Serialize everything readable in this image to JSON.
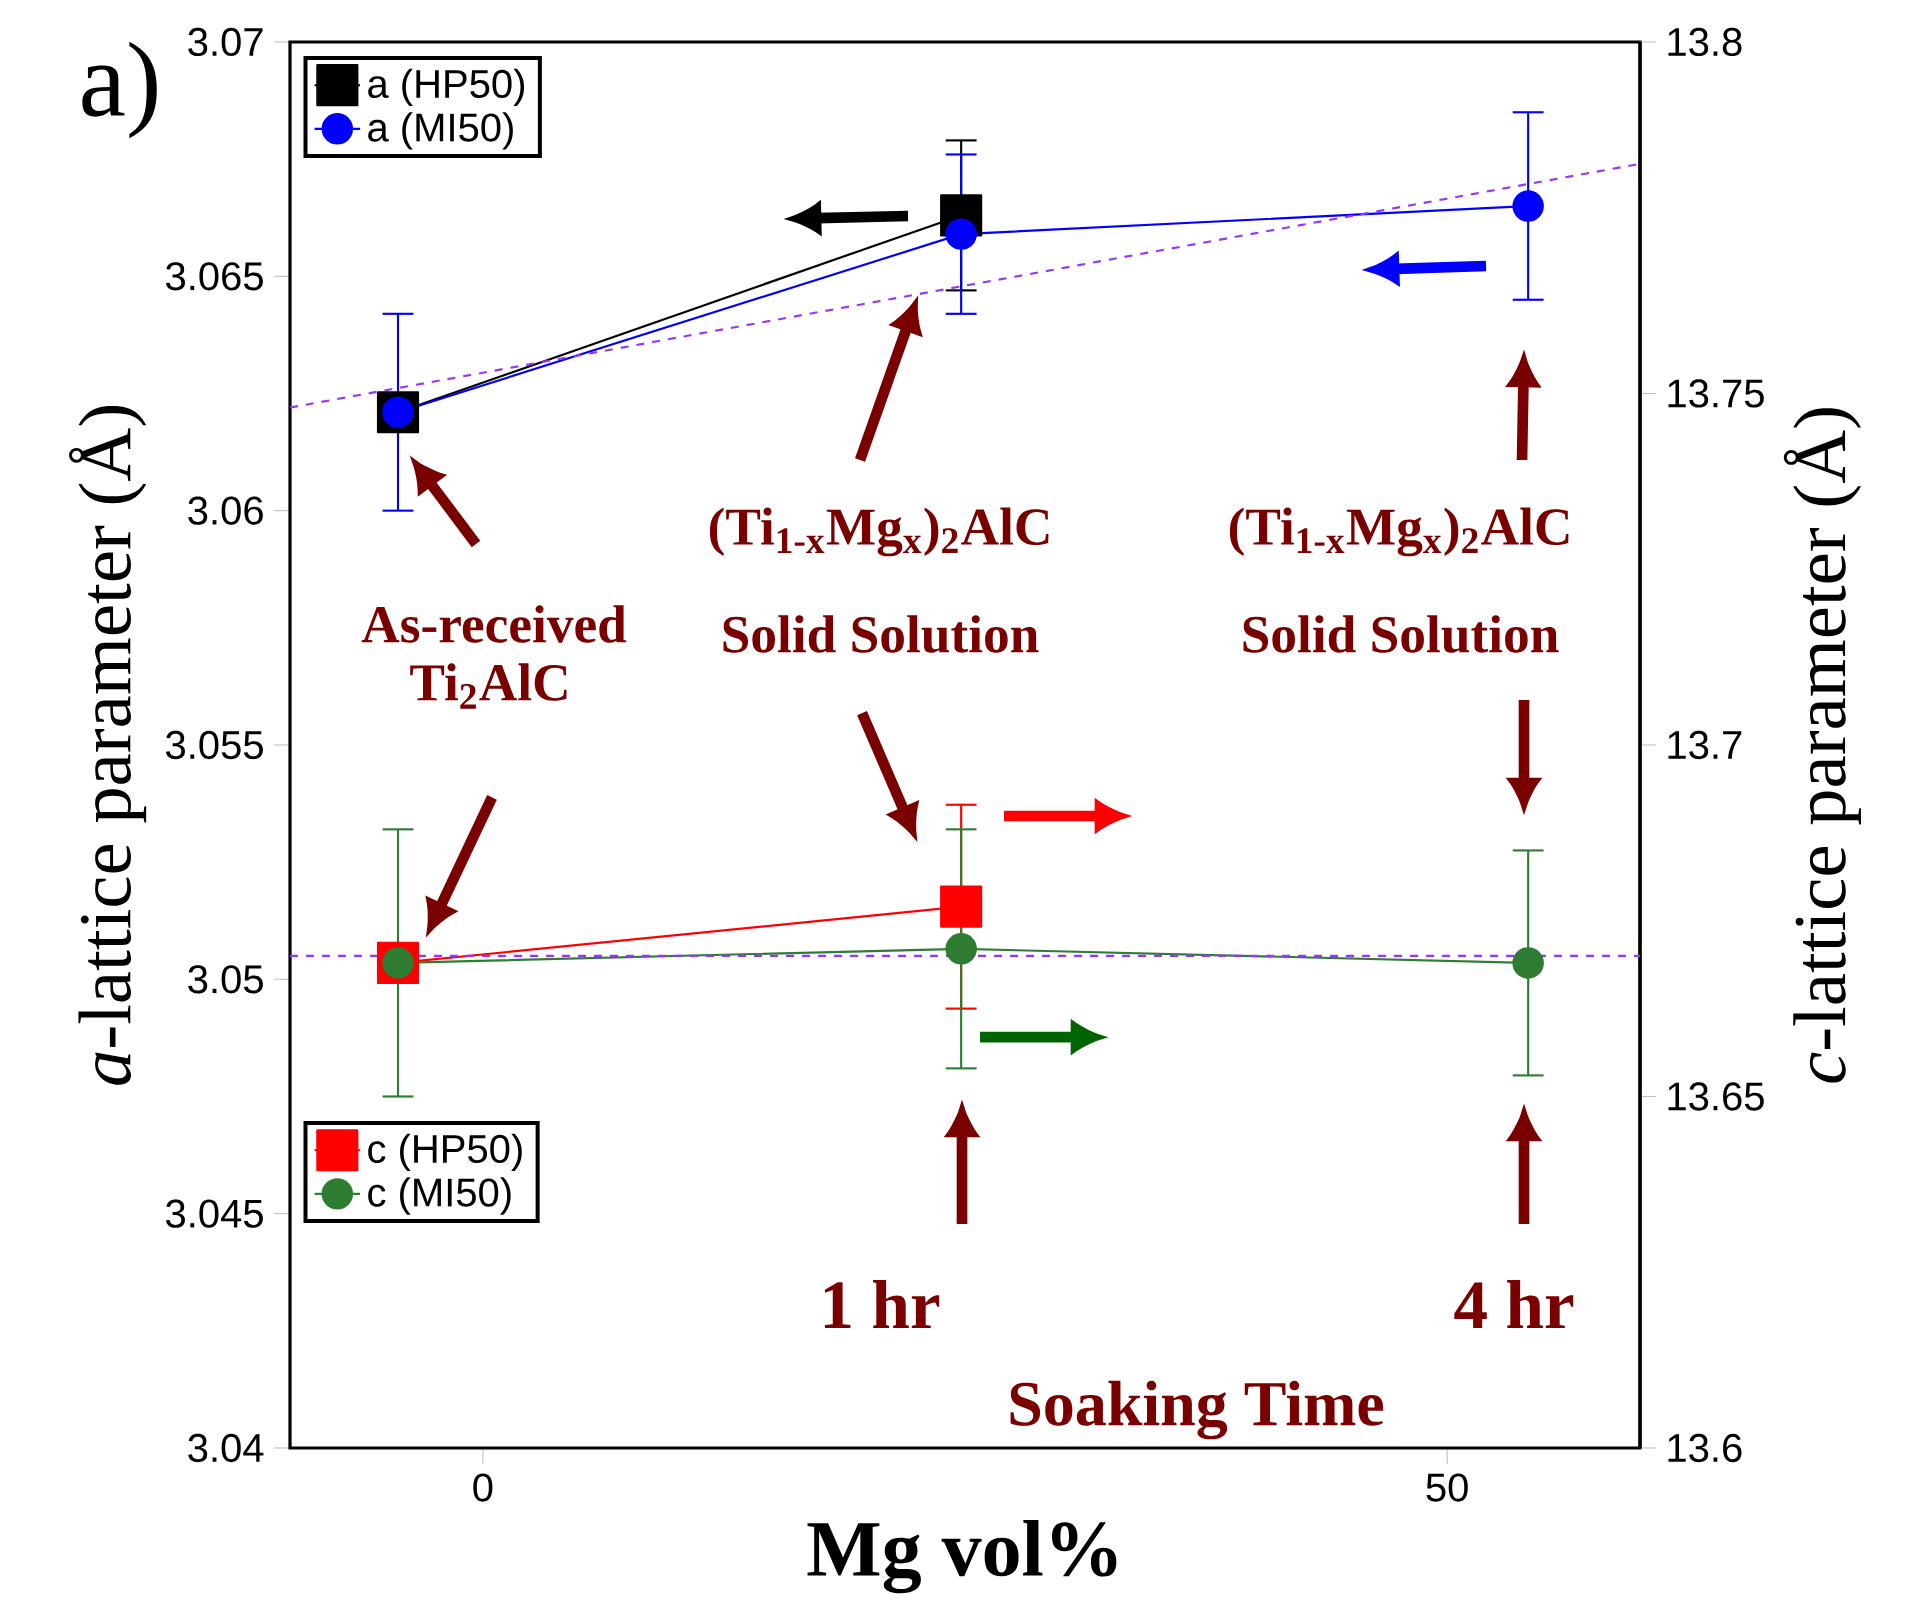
{
  "chart_data": {
    "type": "line",
    "xlabel": "Mg vol%",
    "ylabel": "*a*-lattice parameter (Å)",
    "y2label": "*c*-lattice parameter (Å)",
    "x": [
      -4.4,
      24.8,
      54.2
    ],
    "xlim": [
      -10,
      60
    ],
    "xticks": [
      0,
      50
    ],
    "ylim": [
      3.04,
      3.07
    ],
    "yticks": [
      3.04,
      3.045,
      3.05,
      3.055,
      3.06,
      3.065,
      3.07
    ],
    "y2lim": [
      13.6,
      13.8
    ],
    "y2ticks": [
      13.6,
      13.65,
      13.7,
      13.75,
      13.8
    ],
    "legend": "top left",
    "series": [
      {
        "name": "a (HP50)",
        "color": "#000000",
        "marker": "square",
        "values": [
          3.0621,
          3.0663,
          null
        ],
        "errors": [
          null,
          0.0016,
          null
        ]
      },
      {
        "name": "a (MI50)",
        "color": "#0000ff",
        "marker": "circle",
        "values": [
          3.0621,
          3.0659,
          3.0665
        ],
        "errors": [
          0.0021,
          0.0017,
          0.002
        ]
      },
      {
        "name": "c (HP50)",
        "color": "#ff0000",
        "marker": "square",
        "axis": "y2",
        "values": [
          13.669,
          13.677,
          null
        ],
        "errors": [
          null,
          0.0145,
          null
        ]
      },
      {
        "name": "c (MI50)",
        "color": "#2e7d32",
        "marker": "circle",
        "axis": "y2",
        "values": [
          13.669,
          13.671,
          13.669
        ],
        "errors": [
          0.019,
          0.017,
          0.016
        ]
      },
      {
        "type": "line",
        "color": "#9933ff",
        "line_style": "dashed",
        "marker": "none",
        "x": [
          -10,
          60
        ],
        "values": [
          3.0622,
          3.0674
        ]
      }
    ],
    "ref_lines": [
      {
        "axis": "y2",
        "value": 13.67,
        "color": "#9933ff",
        "line_style": "dashed"
      }
    ],
    "annotations": [
      "a)",
      "As-received",
      "Ti$_{2}$AlC",
      "(Ti$_{1-x}$Mg$_{x}$)$_{2}$AlC",
      "Solid Solution",
      "(Ti$_{1-x}$Mg$_{x}$)$_{2}$AlC",
      "Solid Solution",
      "1 hr",
      "4 hr",
      "Soaking Time"
    ]
  }
}
